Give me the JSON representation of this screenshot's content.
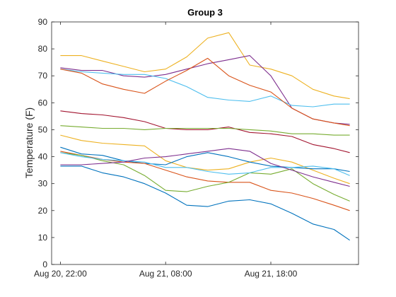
{
  "chart_data": {
    "type": "line",
    "title": "Group 3",
    "xlabel": "",
    "ylabel": "Temperature (F)",
    "x_axis": {
      "type": "datetime",
      "range": [
        "2023-08-20T21:10",
        "2023-08-22T02:20"
      ],
      "ticks": [
        "Aug 20, 22:00",
        "Aug 21, 08:00",
        "Aug 21, 18:00"
      ]
    },
    "ylim": [
      0,
      90
    ],
    "yticks": [
      "0",
      "10",
      "20",
      "30",
      "40",
      "50",
      "60",
      "70",
      "80",
      "90"
    ],
    "x": [
      "2023-08-20T22:00",
      "2023-08-21T00:00",
      "2023-08-21T02:00",
      "2023-08-21T04:00",
      "2023-08-21T06:00",
      "2023-08-21T08:00",
      "2023-08-21T10:00",
      "2023-08-21T12:00",
      "2023-08-21T14:00",
      "2023-08-21T16:00",
      "2023-08-21T18:00",
      "2023-08-21T20:00",
      "2023-08-21T22:00",
      "2023-08-22T00:00",
      "2023-08-22T01:30"
    ],
    "series": [
      {
        "color": "#EDB120",
        "values": [
          77.5,
          77.5,
          75.5,
          73.5,
          71.5,
          72.5,
          77.0,
          84.0,
          86.0,
          74.0,
          72.5,
          70.0,
          65.0,
          62.5,
          61.5
        ]
      },
      {
        "color": "#7E2F8E",
        "values": [
          73.0,
          72.0,
          72.0,
          70.0,
          69.5,
          70.5,
          72.5,
          74.5,
          76.0,
          77.5,
          70.0,
          58.0,
          54.0,
          52.5,
          52.0
        ]
      },
      {
        "color": "#4DBEEE",
        "values": [
          72.5,
          71.5,
          71.0,
          70.5,
          70.5,
          69.0,
          66.0,
          62.0,
          61.0,
          60.5,
          62.5,
          59.0,
          58.5,
          59.5,
          59.5
        ]
      },
      {
        "color": "#D95319",
        "values": [
          72.5,
          71.0,
          67.0,
          65.0,
          63.5,
          68.0,
          72.0,
          76.5,
          70.0,
          66.5,
          64.0,
          58.0,
          54.0,
          52.5,
          51.5
        ]
      },
      {
        "color": "#A2142F",
        "values": [
          57.0,
          56.0,
          55.5,
          54.5,
          53.0,
          50.5,
          50.0,
          50.0,
          51.0,
          49.0,
          48.5,
          47.5,
          44.5,
          43.0,
          41.5
        ]
      },
      {
        "color": "#77AC30",
        "values": [
          51.5,
          51.0,
          50.5,
          50.5,
          50.0,
          50.5,
          50.5,
          50.5,
          50.5,
          50.0,
          49.5,
          48.5,
          48.5,
          48.0,
          48.0
        ]
      },
      {
        "color": "#EDB120",
        "values": [
          48.0,
          46.0,
          45.0,
          44.5,
          44.0,
          38.5,
          36.0,
          35.0,
          35.5,
          38.0,
          39.5,
          38.0,
          35.0,
          32.0,
          30.0
        ]
      },
      {
        "color": "#0072BD",
        "values": [
          43.5,
          41.0,
          40.5,
          38.5,
          37.5,
          37.0,
          40.0,
          41.5,
          40.0,
          38.0,
          36.5,
          36.0,
          35.5,
          35.5,
          34.5
        ]
      },
      {
        "color": "#D95319",
        "values": [
          42.0,
          40.5,
          39.0,
          38.0,
          37.5,
          35.0,
          32.5,
          31.0,
          30.5,
          30.5,
          27.5,
          26.5,
          24.5,
          22.0,
          20.0
        ]
      },
      {
        "color": "#77AC30",
        "values": [
          41.5,
          40.5,
          38.5,
          37.0,
          33.0,
          27.5,
          27.0,
          29.0,
          30.5,
          34.0,
          33.5,
          35.5,
          30.0,
          26.0,
          23.5
        ]
      },
      {
        "color": "#4DBEEE",
        "values": [
          41.5,
          40.0,
          39.0,
          38.5,
          38.0,
          36.0,
          36.0,
          34.5,
          33.5,
          34.0,
          36.0,
          36.0,
          36.5,
          35.5,
          33.0
        ]
      },
      {
        "color": "#7E2F8E",
        "values": [
          37.0,
          37.0,
          37.5,
          38.0,
          39.5,
          40.0,
          41.0,
          42.0,
          43.0,
          42.0,
          37.5,
          35.0,
          32.5,
          30.5,
          29.0
        ]
      },
      {
        "color": "#0072BD",
        "values": [
          36.5,
          36.5,
          34.0,
          32.5,
          30.0,
          26.5,
          22.0,
          21.5,
          23.5,
          24.0,
          22.5,
          19.0,
          15.0,
          13.0,
          9.0
        ]
      }
    ],
    "grid": false,
    "legend": "none"
  }
}
